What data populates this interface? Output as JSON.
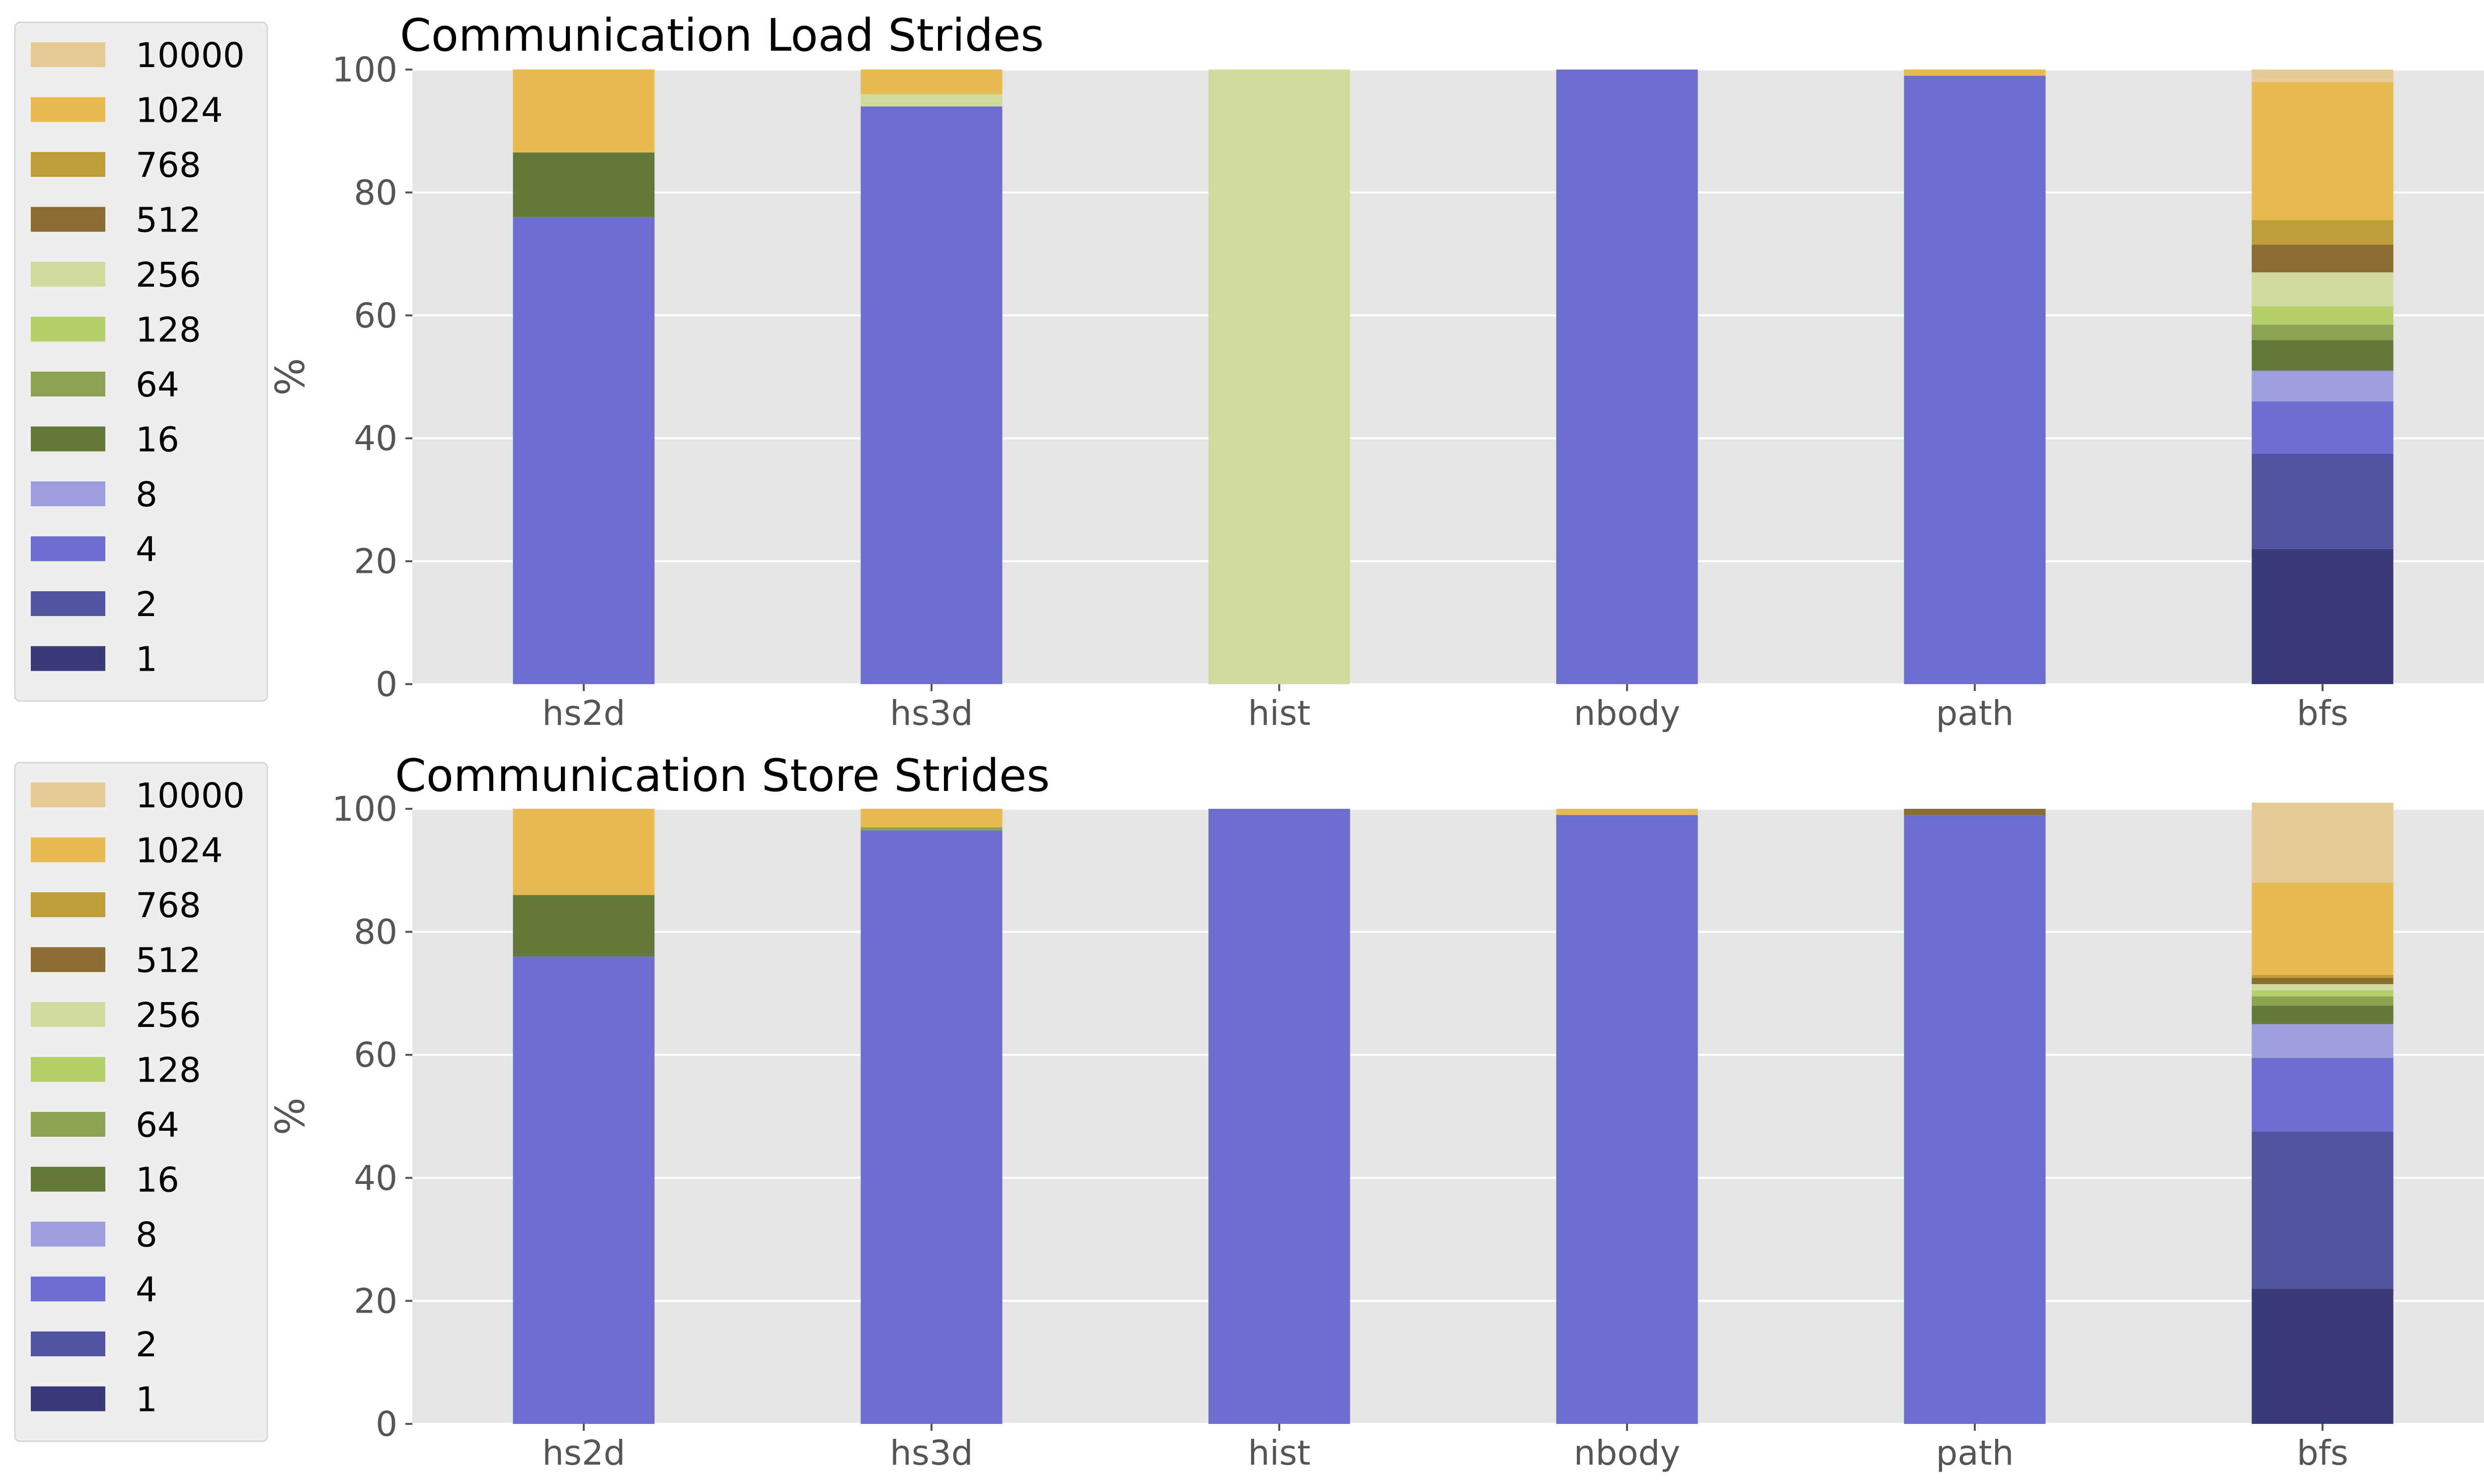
{
  "legend": {
    "entries": [
      "10000",
      "1024",
      "768",
      "512",
      "256",
      "128",
      "64",
      "16",
      "8",
      "4",
      "2",
      "1"
    ],
    "colors": {
      "1": "#393b79",
      "2": "#5254a3",
      "4": "#6b6ecf",
      "8": "#9c9ede",
      "16": "#637939",
      "64": "#8ca252",
      "128": "#b5cf6b",
      "256": "#cedb9c",
      "512": "#8c6d31",
      "768": "#bd9e39",
      "1024": "#e7ba52",
      "10000": "#e7cb94"
    }
  },
  "chart_data": [
    {
      "type": "bar",
      "stacked": true,
      "title": "Communication Load Strides",
      "xlabel": "",
      "ylabel": "%",
      "ylim": [
        0,
        100
      ],
      "yticks": [
        "0",
        "20",
        "40",
        "60",
        "80",
        "100"
      ],
      "categories": [
        "hs2d",
        "hs3d",
        "hist",
        "nbody",
        "path",
        "bfs"
      ],
      "grid": true,
      "legend_position": "left",
      "series": [
        {
          "name": "1",
          "values": [
            0,
            0,
            0,
            0,
            0,
            22
          ]
        },
        {
          "name": "2",
          "values": [
            0,
            0,
            0,
            0,
            0,
            15.5
          ]
        },
        {
          "name": "4",
          "values": [
            76,
            94,
            0,
            100,
            99,
            8.5
          ]
        },
        {
          "name": "8",
          "values": [
            0,
            0,
            0,
            0,
            0,
            5
          ]
        },
        {
          "name": "16",
          "values": [
            10.5,
            0,
            0,
            0,
            0,
            5
          ]
        },
        {
          "name": "64",
          "values": [
            0,
            0,
            0,
            0,
            0,
            2.5
          ]
        },
        {
          "name": "128",
          "values": [
            0,
            0,
            0,
            0,
            0,
            3
          ]
        },
        {
          "name": "256",
          "values": [
            0,
            2,
            100,
            0,
            0,
            5.5
          ]
        },
        {
          "name": "512",
          "values": [
            0,
            0,
            0,
            0,
            0,
            4.5
          ]
        },
        {
          "name": "768",
          "values": [
            0,
            0,
            0,
            0,
            0,
            4
          ]
        },
        {
          "name": "1024",
          "values": [
            13.5,
            4,
            0,
            0,
            1,
            22.5
          ]
        },
        {
          "name": "10000",
          "values": [
            0,
            0,
            0,
            0,
            0,
            2
          ]
        }
      ]
    },
    {
      "type": "bar",
      "stacked": true,
      "title": "Communication Store Strides",
      "xlabel": "",
      "ylabel": "%",
      "ylim": [
        0,
        100
      ],
      "yticks": [
        "0",
        "20",
        "40",
        "60",
        "80",
        "100"
      ],
      "categories": [
        "hs2d",
        "hs3d",
        "hist",
        "nbody",
        "path",
        "bfs"
      ],
      "grid": true,
      "legend_position": "left",
      "series": [
        {
          "name": "1",
          "values": [
            0,
            0,
            0,
            0,
            0,
            22
          ]
        },
        {
          "name": "2",
          "values": [
            0,
            0,
            0,
            0,
            0,
            25.5
          ]
        },
        {
          "name": "4",
          "values": [
            76,
            96.5,
            100,
            99,
            99,
            12
          ]
        },
        {
          "name": "8",
          "values": [
            0,
            0,
            0,
            0,
            0,
            5.5
          ]
        },
        {
          "name": "16",
          "values": [
            10,
            0,
            0,
            0,
            0,
            3
          ]
        },
        {
          "name": "64",
          "values": [
            0,
            0.5,
            0,
            0,
            0,
            1.5
          ]
        },
        {
          "name": "128",
          "values": [
            0,
            0,
            0,
            0,
            0,
            1
          ]
        },
        {
          "name": "256",
          "values": [
            0,
            0,
            0,
            0,
            0,
            1
          ]
        },
        {
          "name": "512",
          "values": [
            0,
            0,
            0,
            0,
            1,
            1
          ]
        },
        {
          "name": "768",
          "values": [
            0,
            0,
            0,
            0,
            0,
            0.5
          ]
        },
        {
          "name": "1024",
          "values": [
            14,
            3,
            0,
            1,
            0,
            15
          ]
        },
        {
          "name": "10000",
          "values": [
            0,
            0,
            0,
            0,
            0,
            13
          ]
        }
      ]
    }
  ]
}
